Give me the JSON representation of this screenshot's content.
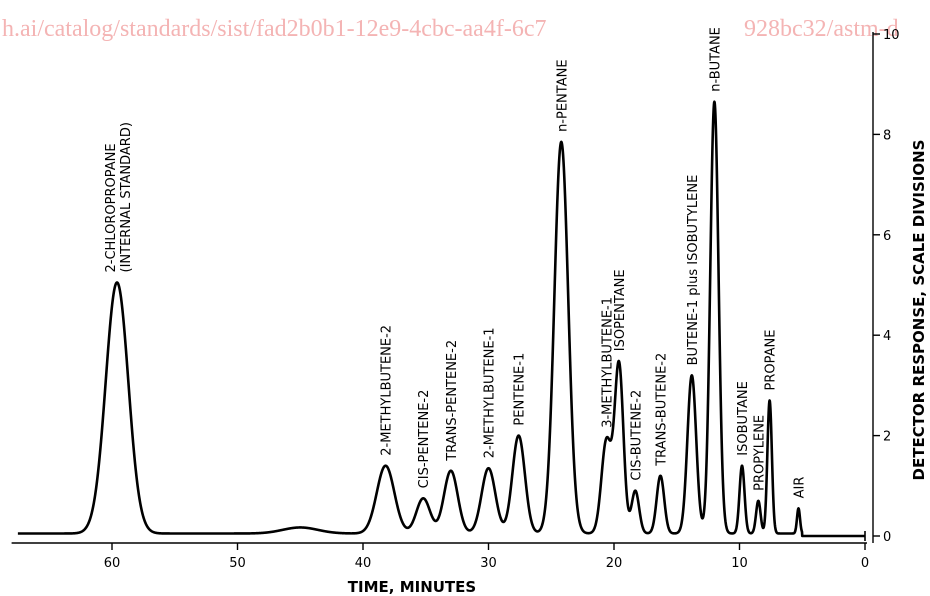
{
  "watermark": "h.ai/catalog/standards/sist/fad2b0b1-12e9-4cbc-aa4f-6c7",
  "watermark2": "928bc32/astm-d",
  "chart_data": {
    "type": "line",
    "title": "",
    "xlabel": "TIME, MINUTES",
    "ylabel": "DETECTOR RESPONSE, SCALE DIVISIONS",
    "x_reversed": true,
    "xlim": [
      68,
      0
    ],
    "ylim": [
      0,
      10
    ],
    "x_ticks": [
      60,
      50,
      40,
      30,
      20,
      10,
      0
    ],
    "y_ticks": [
      0,
      2,
      4,
      6,
      8,
      10
    ],
    "grid": false,
    "legend": "none",
    "baseline": 0.05,
    "peaks": [
      {
        "label": "2-CHLOROPROPANE",
        "label2": "(INTERNAL STANDARD)",
        "time": 59.6,
        "height": 5.0,
        "width": 0.9
      },
      {
        "label": "",
        "label2": "",
        "time": 45.0,
        "height": 0.12,
        "width": 1.4
      },
      {
        "label": "2-METHYLBUTENE-2",
        "label2": "",
        "time": 38.2,
        "height": 1.35,
        "width": 0.7
      },
      {
        "label": "CIS-PENTENE-2",
        "label2": "",
        "time": 35.2,
        "height": 0.7,
        "width": 0.55
      },
      {
        "label": "TRANS-PENTENE-2",
        "label2": "",
        "time": 33.0,
        "height": 1.25,
        "width": 0.55
      },
      {
        "label": "2-METHYLBUTENE-1",
        "label2": "",
        "time": 30.0,
        "height": 1.3,
        "width": 0.55
      },
      {
        "label": "PENTENE-1",
        "label2": "",
        "time": 27.6,
        "height": 1.95,
        "width": 0.5
      },
      {
        "label": "n-PENTANE",
        "label2": "",
        "time": 24.2,
        "height": 7.8,
        "width": 0.55
      },
      {
        "label": "3-METHYLBUTENE-1",
        "label2": "",
        "time": 20.6,
        "height": 1.85,
        "width": 0.4
      },
      {
        "label": "ISOPENTANE",
        "label2": "",
        "time": 19.6,
        "height": 3.35,
        "width": 0.35
      },
      {
        "label": "CIS-BUTENE-2",
        "label2": "",
        "time": 18.3,
        "height": 0.85,
        "width": 0.3
      },
      {
        "label": "TRANS-BUTENE-2",
        "label2": "",
        "time": 16.3,
        "height": 1.15,
        "width": 0.3
      },
      {
        "label": "BUTENE-1 plus ISOBUTYLENE",
        "label2": "",
        "time": 13.8,
        "height": 3.15,
        "width": 0.35
      },
      {
        "label": "n-BUTANE",
        "label2": "",
        "time": 12.0,
        "height": 8.6,
        "width": 0.33
      },
      {
        "label": "ISOBUTANE",
        "label2": "",
        "time": 9.8,
        "height": 1.35,
        "width": 0.2
      },
      {
        "label": "PROPYLENE",
        "label2": "",
        "time": 8.5,
        "height": 0.65,
        "width": 0.18
      },
      {
        "label": "PROPANE",
        "label2": "",
        "time": 7.6,
        "height": 2.65,
        "width": 0.18
      },
      {
        "label": "AIR",
        "label2": "",
        "time": 5.3,
        "height": 0.5,
        "width": 0.12
      }
    ]
  }
}
